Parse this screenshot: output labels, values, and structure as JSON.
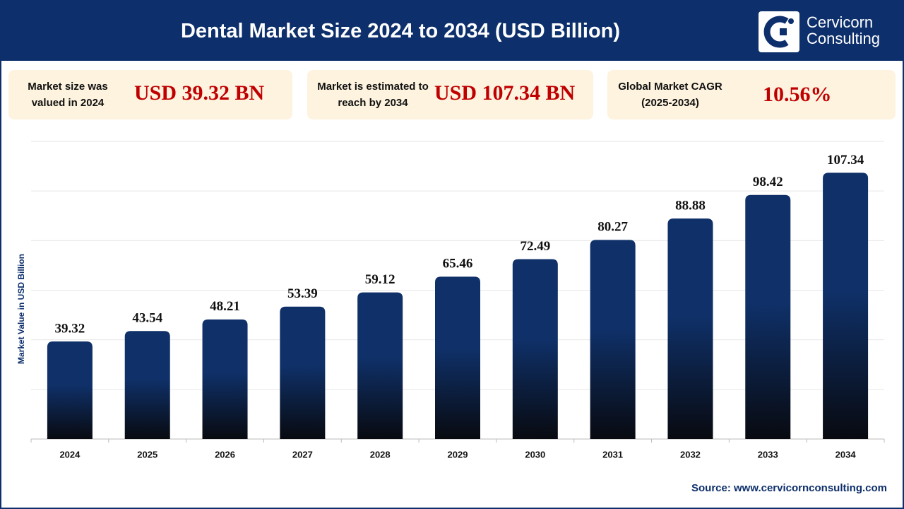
{
  "header": {
    "title": "Dental Market Size 2024 to 2034 (USD Billion)",
    "brand": [
      "Cervicorn",
      "Consulting"
    ]
  },
  "highlights": [
    {
      "label": "Market size was valued in 2024",
      "value": "USD 39.32 BN"
    },
    {
      "label": "Market is estimated to reach by 2034",
      "value": "USD 107.34 BN"
    },
    {
      "label": "Global Market CAGR (2025-2034)",
      "value": "10.56%"
    }
  ],
  "chart_data": {
    "type": "bar",
    "y_label": "Market Value in USD Billion",
    "categories": [
      "2024",
      "2025",
      "2026",
      "2027",
      "2028",
      "2029",
      "2030",
      "2031",
      "2032",
      "2033",
      "2034"
    ],
    "values": [
      39.32,
      43.54,
      48.21,
      53.39,
      59.12,
      65.46,
      72.49,
      80.27,
      88.88,
      98.42,
      107.34
    ],
    "color": "#0f3068",
    "ylim": [
      0,
      120
    ],
    "yticks": [
      0,
      20,
      40,
      60,
      80,
      100,
      120
    ],
    "grid": true
  },
  "source": "Source: www.cervicornconsulting.com"
}
